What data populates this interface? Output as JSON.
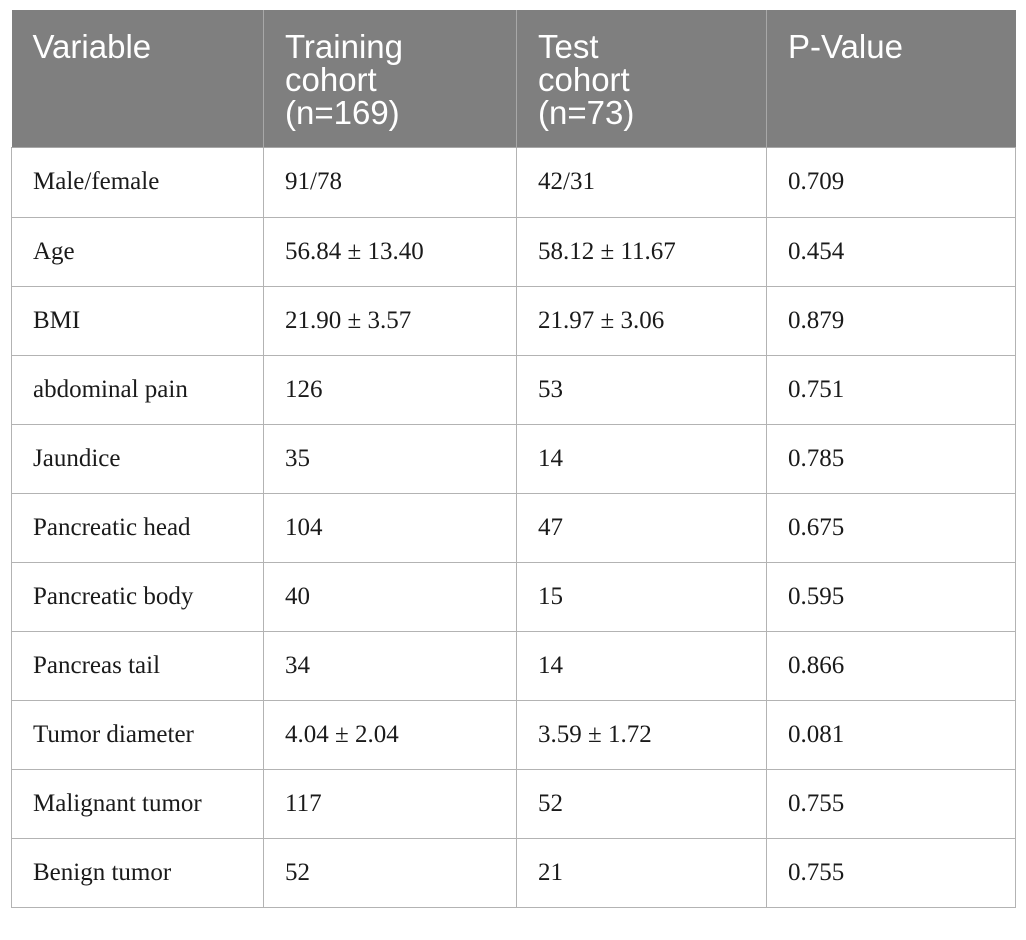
{
  "table": {
    "headers": [
      [
        "Variable"
      ],
      [
        "Training",
        "cohort",
        "(n=169)"
      ],
      [
        "Test",
        "cohort",
        "(n=73)"
      ],
      [
        "P-Value"
      ]
    ],
    "rows": [
      [
        "Male/female",
        "91/78",
        "42/31",
        "0.709"
      ],
      [
        "Age",
        "56.84 ± 13.40",
        "58.12 ± 11.67",
        "0.454"
      ],
      [
        "BMI",
        "21.90 ± 3.57",
        "21.97 ± 3.06",
        "0.879"
      ],
      [
        "abdominal pain",
        "126",
        "53",
        "0.751"
      ],
      [
        "Jaundice",
        "35",
        "14",
        "0.785"
      ],
      [
        "Pancreatic head",
        "104",
        "47",
        "0.675"
      ],
      [
        "Pancreatic body",
        "40",
        "15",
        "0.595"
      ],
      [
        "Pancreas tail",
        "34",
        "14",
        "0.866"
      ],
      [
        "Tumor diameter",
        "4.04 ± 2.04",
        "3.59 ± 1.72",
        "0.081"
      ],
      [
        "Malignant tumor",
        "117",
        "52",
        "0.755"
      ],
      [
        "Benign tumor",
        "52",
        "21",
        "0.755"
      ]
    ]
  },
  "colors": {
    "header_background": "#7f7f7f",
    "header_text": "#ffffff",
    "grid_lines": "#b3b3b3"
  }
}
